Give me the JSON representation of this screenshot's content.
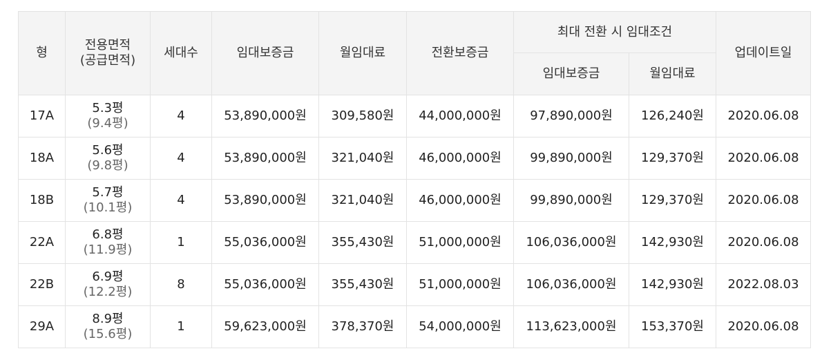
{
  "table": {
    "headers": {
      "type": "형",
      "area_line1": "전용면적",
      "area_line2": "(공급면적)",
      "households": "세대수",
      "deposit": "임대보증금",
      "monthly_rent": "월임대료",
      "conversion_deposit": "전환보증금",
      "max_conversion_group": "최대 전환 시 임대조건",
      "max_deposit": "임대보증금",
      "max_monthly_rent": "월임대료",
      "updated": "업데이트일"
    },
    "rows": [
      {
        "type": "17A",
        "area": "5.3평",
        "supply_area": "(9.4평)",
        "households": "4",
        "deposit": "53,890,000원",
        "monthly_rent": "309,580원",
        "conversion_deposit": "44,000,000원",
        "max_deposit": "97,890,000원",
        "max_monthly_rent": "126,240원",
        "updated": "2020.06.08"
      },
      {
        "type": "18A",
        "area": "5.6평",
        "supply_area": "(9.8평)",
        "households": "4",
        "deposit": "53,890,000원",
        "monthly_rent": "321,040원",
        "conversion_deposit": "46,000,000원",
        "max_deposit": "99,890,000원",
        "max_monthly_rent": "129,370원",
        "updated": "2020.06.08"
      },
      {
        "type": "18B",
        "area": "5.7평",
        "supply_area": "(10.1평)",
        "households": "4",
        "deposit": "53,890,000원",
        "monthly_rent": "321,040원",
        "conversion_deposit": "46,000,000원",
        "max_deposit": "99,890,000원",
        "max_monthly_rent": "129,370원",
        "updated": "2020.06.08"
      },
      {
        "type": "22A",
        "area": "6.8평",
        "supply_area": "(11.9평)",
        "households": "1",
        "deposit": "55,036,000원",
        "monthly_rent": "355,430원",
        "conversion_deposit": "51,000,000원",
        "max_deposit": "106,036,000원",
        "max_monthly_rent": "142,930원",
        "updated": "2020.06.08"
      },
      {
        "type": "22B",
        "area": "6.9평",
        "supply_area": "(12.2평)",
        "households": "8",
        "deposit": "55,036,000원",
        "monthly_rent": "355,430원",
        "conversion_deposit": "51,000,000원",
        "max_deposit": "106,036,000원",
        "max_monthly_rent": "142,930원",
        "updated": "2022.08.03"
      },
      {
        "type": "29A",
        "area": "8.9평",
        "supply_area": "(15.6평)",
        "households": "1",
        "deposit": "59,623,000원",
        "monthly_rent": "378,370원",
        "conversion_deposit": "54,000,000원",
        "max_deposit": "113,623,000원",
        "max_monthly_rent": "153,370원",
        "updated": "2020.06.08"
      }
    ]
  }
}
